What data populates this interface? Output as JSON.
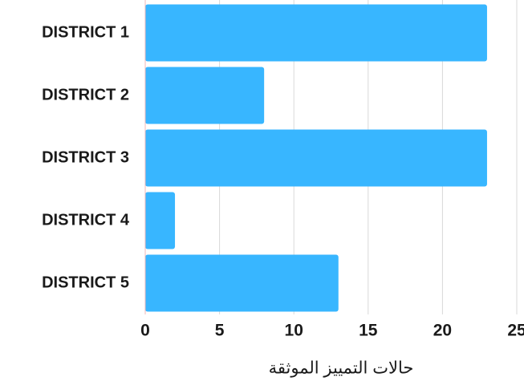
{
  "chart_data": {
    "type": "bar",
    "orientation": "horizontal",
    "x_label": "حالات التمييز الموثقة",
    "categories": [
      "DISTRICT 1",
      "DISTRICT 2",
      "DISTRICT 3",
      "DISTRICT 4",
      "DISTRICT 5"
    ],
    "values": [
      23,
      8,
      23,
      2,
      13
    ],
    "color": "#38b6ff",
    "xlim": [
      0,
      25
    ],
    "xticks": [
      0,
      5,
      10,
      15,
      20,
      25
    ],
    "grid": true
  }
}
